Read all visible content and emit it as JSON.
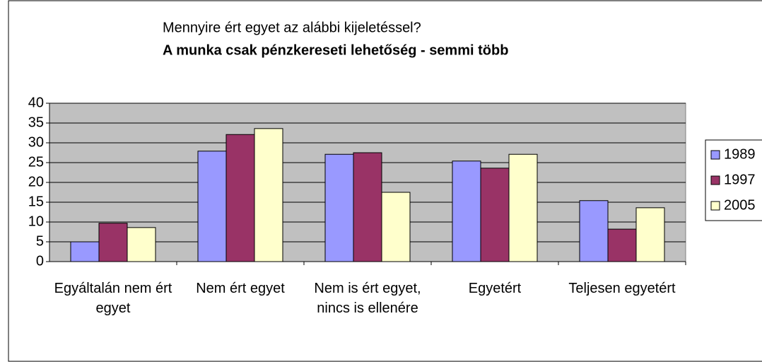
{
  "chart_data": {
    "type": "bar",
    "title": "Mennyire ért egyet az alábbi kijeletéssel?",
    "subtitle": "A munka csak pénzkereseti lehetőség - semmi több",
    "categories": [
      "Egyáltalán nem ért egyet",
      "Nem ért egyet",
      "Nem is ért egyet, nincs is ellenére",
      "Egyetért",
      "Teljesen egyetért"
    ],
    "series": [
      {
        "name": "1989",
        "color": "#9999ff",
        "values": [
          5,
          27.9,
          27.1,
          25.4,
          15.4
        ]
      },
      {
        "name": "1997",
        "color": "#993366",
        "values": [
          9.7,
          32.1,
          27.5,
          23.6,
          8.2
        ]
      },
      {
        "name": "2005",
        "color": "#ffffcc",
        "values": [
          8.6,
          33.6,
          17.5,
          27.1,
          13.6
        ]
      }
    ],
    "ylim": [
      0,
      40
    ],
    "yticks": [
      0,
      5,
      10,
      15,
      20,
      25,
      30,
      35,
      40
    ],
    "grid": true,
    "legend": "right"
  }
}
